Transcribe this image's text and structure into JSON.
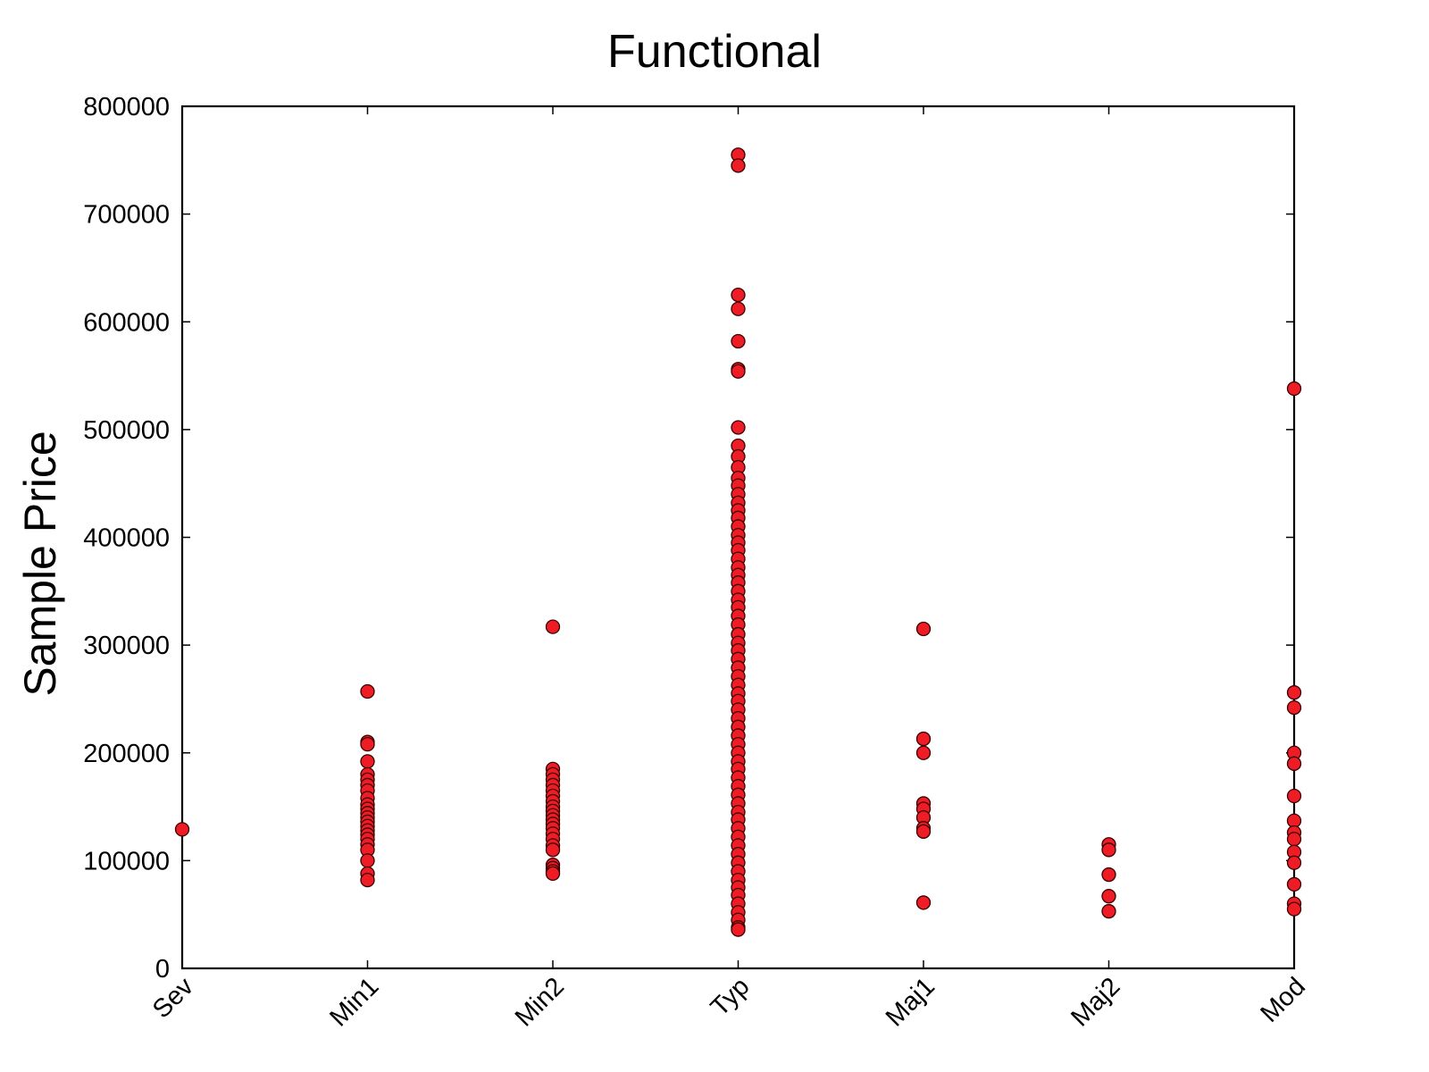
{
  "chart_data": {
    "type": "scatter",
    "title": "Functional",
    "xlabel": "",
    "ylabel": "Sample Price",
    "categories": [
      "Sev",
      "Min1",
      "Min2",
      "Typ",
      "Maj1",
      "Maj2",
      "Mod"
    ],
    "yticks": [
      "0",
      "100000",
      "200000",
      "300000",
      "400000",
      "500000",
      "600000",
      "700000",
      "800000"
    ],
    "ylim": [
      0,
      800000
    ],
    "grid": false,
    "legend": "none",
    "colors": {
      "marker_fill": "#ee1c25",
      "marker_edge": "#3a0000"
    },
    "points": {
      "Sev": [
        129000
      ],
      "Min1": [
        257000,
        210000,
        208000,
        192000,
        180000,
        175000,
        170000,
        165000,
        158000,
        152000,
        148000,
        144000,
        140000,
        136000,
        132000,
        128000,
        124000,
        120000,
        115000,
        110000,
        100000,
        88000,
        82000
      ],
      "Min2": [
        317000,
        185000,
        180000,
        175000,
        170000,
        165000,
        160000,
        155000,
        150000,
        146000,
        142000,
        138000,
        134000,
        130000,
        125000,
        120000,
        114000,
        110000,
        96000,
        93000,
        90000,
        88000
      ],
      "Typ": [
        755000,
        745000,
        625000,
        612000,
        582000,
        556000,
        554000,
        502000,
        485000,
        475000,
        465000,
        455000,
        448000,
        440000,
        432000,
        425000,
        418000,
        410000,
        402000,
        395000,
        388000,
        380000,
        372000,
        365000,
        358000,
        350000,
        342000,
        335000,
        327000,
        319000,
        310000,
        302000,
        295000,
        287000,
        279000,
        271000,
        263000,
        255000,
        248000,
        240000,
        232000,
        224000,
        216000,
        208000,
        200000,
        192000,
        185000,
        177000,
        169000,
        161000,
        153000,
        145000,
        138000,
        130000,
        122000,
        114000,
        106000,
        98000,
        90000,
        82000,
        75000,
        68000,
        60000,
        52000,
        45000,
        38000,
        36000
      ],
      "Maj1": [
        315000,
        213000,
        200000,
        153000,
        148000,
        140000,
        130000,
        127000,
        61000
      ],
      "Maj2": [
        115000,
        110000,
        87000,
        67000,
        53000
      ],
      "Mod": [
        538000,
        256000,
        242000,
        200000,
        190000,
        160000,
        137000,
        126000,
        120000,
        108000,
        98000,
        78000,
        60000,
        55000
      ]
    }
  }
}
